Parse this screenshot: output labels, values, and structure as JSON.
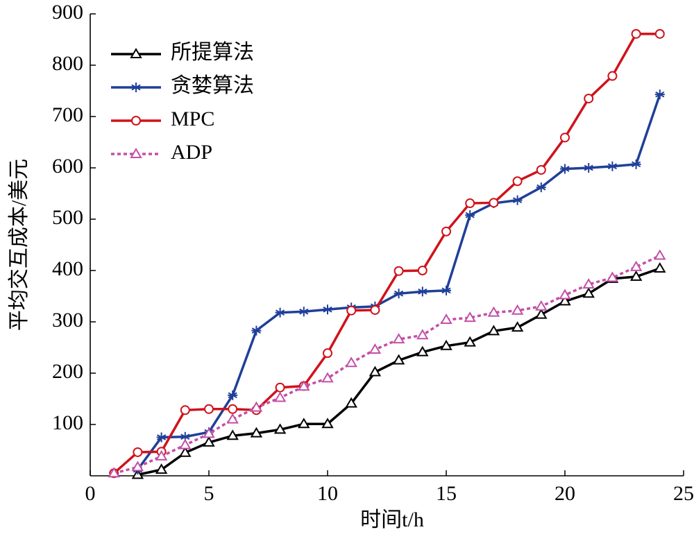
{
  "chart_data": {
    "type": "line",
    "x": [
      1,
      2,
      3,
      4,
      5,
      6,
      7,
      8,
      9,
      10,
      11,
      12,
      13,
      14,
      15,
      16,
      17,
      18,
      19,
      20,
      21,
      22,
      23,
      24
    ],
    "series": [
      {
        "name": "所提算法",
        "color": "#000000",
        "marker": "triangle",
        "dash": false,
        "values": [
          null,
          2,
          12,
          45,
          65,
          78,
          83,
          90,
          101,
          101,
          141,
          202,
          225,
          241,
          253,
          260,
          282,
          289,
          314,
          340,
          355,
          384,
          388,
          404
        ]
      },
      {
        "name": "贪婪算法",
        "color": "#1f3f99",
        "marker": "star",
        "dash": false,
        "values": [
          null,
          12,
          75,
          76,
          85,
          157,
          283,
          318,
          320,
          324,
          328,
          330,
          355,
          359,
          361,
          508,
          531,
          537,
          562,
          598,
          600,
          603,
          607,
          743
        ]
      },
      {
        "name": "MPC",
        "color": "#d0121b",
        "marker": "circle",
        "dash": false,
        "values": [
          5,
          46,
          47,
          128,
          130,
          130,
          128,
          172,
          175,
          239,
          322,
          323,
          399,
          400,
          476,
          531,
          532,
          574,
          596,
          659,
          735,
          779,
          861,
          861
        ]
      },
      {
        "name": "ADP",
        "color": "#c24fa6",
        "marker": "triangle",
        "dash": true,
        "values": [
          5,
          17,
          38,
          60,
          82,
          110,
          133,
          152,
          174,
          190,
          220,
          246,
          266,
          274,
          304,
          308,
          318,
          322,
          330,
          352,
          373,
          386,
          407,
          429
        ]
      }
    ],
    "xlabel": "时间t/h",
    "ylabel": "平均交互成本/美元",
    "xlim": [
      0,
      25
    ],
    "xticks": [
      0,
      5,
      10,
      15,
      20,
      25
    ],
    "ylim": [
      0,
      900
    ],
    "yticks": [
      100,
      200,
      300,
      400,
      500,
      600,
      700,
      800,
      900
    ],
    "legend": "upper left"
  }
}
